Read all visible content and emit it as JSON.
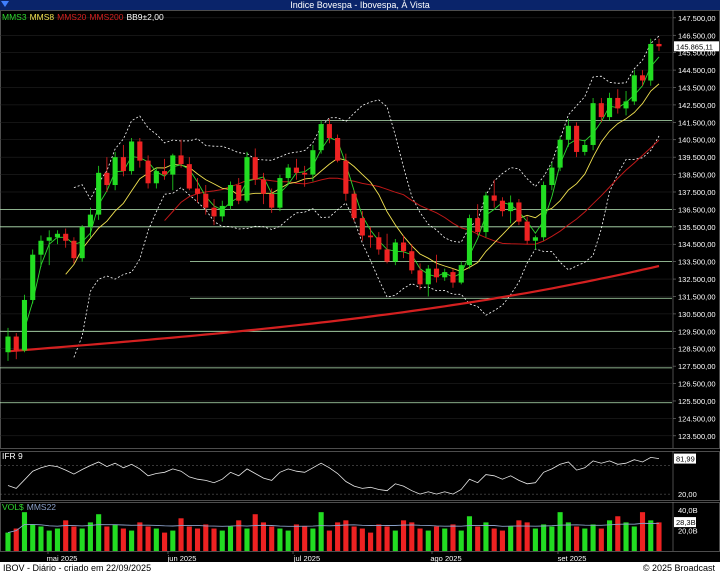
{
  "window": {
    "title": "Indice Bovespa - Ibovespa, À Vista"
  },
  "legend_main": [
    {
      "label": "MMS3",
      "color": "#2fd82f"
    },
    {
      "label": "MMS8",
      "color": "#f0e050"
    },
    {
      "label": "MMS20",
      "color": "#d42020"
    },
    {
      "label": "MMS200",
      "color": "#d42020"
    },
    {
      "label": "BB9±2,00",
      "color": "#ffffff"
    }
  ],
  "legend_ifr": [
    {
      "label": "IFR 9",
      "color": "#ffffff"
    }
  ],
  "legend_vol": [
    {
      "label": "VOL$",
      "color": "#2fd82f"
    },
    {
      "label": "MMS22",
      "color": "#8aa0c8"
    }
  ],
  "footer": {
    "left": "IBOV - Diário - criado em 22/09/2025",
    "right": "© 2025 Broadcast"
  },
  "colors": {
    "up": "#22dd22",
    "down": "#ee2222",
    "bb": "#ffffff",
    "grid": "#2a2a2a",
    "support": "#b8e8b8"
  },
  "chart_data": [
    {
      "type": "candlestick",
      "title": "Indice Bovespa - Ibovespa, À Vista",
      "x_labels": [
        "mai 2025",
        "jun 2025",
        "jul 2025",
        "ago 2025",
        "set 2025"
      ],
      "y_ticks": [
        123500,
        124500,
        125500,
        126500,
        127500,
        128500,
        129500,
        130500,
        131500,
        132500,
        133500,
        134500,
        135500,
        136500,
        137500,
        138500,
        139500,
        140500,
        141500,
        142500,
        143500,
        144500,
        145500,
        146500,
        147500
      ],
      "last_value_label": "145.865,11",
      "last_value": 145865.11,
      "horizontal_lines": [
        141600,
        136500,
        135500,
        133500,
        131400,
        129500,
        127400,
        125400
      ],
      "candles": [
        [
          128300,
          129700,
          127800,
          129200
        ],
        [
          129200,
          129400,
          127900,
          128400
        ],
        [
          128400,
          131600,
          128300,
          131300
        ],
        [
          131300,
          134200,
          131100,
          133900
        ],
        [
          133900,
          135000,
          133200,
          134700
        ],
        [
          134700,
          135300,
          133300,
          134900
        ],
        [
          134900,
          135300,
          134500,
          135100
        ],
        [
          135100,
          135400,
          134300,
          134700
        ],
        [
          134700,
          134900,
          133400,
          133700
        ],
        [
          133700,
          135600,
          133500,
          135500
        ],
        [
          135500,
          136600,
          134900,
          136200
        ],
        [
          136200,
          139000,
          135900,
          138600
        ],
        [
          138600,
          139500,
          137500,
          137900
        ],
        [
          137900,
          139800,
          137600,
          139500
        ],
        [
          139500,
          140200,
          138400,
          138700
        ],
        [
          138700,
          140600,
          138500,
          140400
        ],
        [
          140400,
          140600,
          138900,
          139300
        ],
        [
          139300,
          139600,
          137700,
          138000
        ],
        [
          138000,
          138900,
          137700,
          138700
        ],
        [
          138700,
          139400,
          138200,
          138500
        ],
        [
          138500,
          139700,
          137600,
          139600
        ],
        [
          139600,
          140500,
          138900,
          139100
        ],
        [
          139100,
          139500,
          137600,
          137700
        ],
        [
          137700,
          138300,
          136900,
          137400
        ],
        [
          137400,
          137900,
          136200,
          136600
        ],
        [
          136600,
          137100,
          135600,
          136100
        ],
        [
          136100,
          137000,
          135800,
          136700
        ],
        [
          136700,
          138100,
          136500,
          137900
        ],
        [
          137900,
          138300,
          136800,
          137000
        ],
        [
          137000,
          139800,
          136900,
          139500
        ],
        [
          139500,
          140000,
          137900,
          138200
        ],
        [
          138200,
          138600,
          136800,
          137400
        ],
        [
          137400,
          137700,
          136300,
          136600
        ],
        [
          136600,
          138500,
          136400,
          138300
        ],
        [
          138300,
          139100,
          137900,
          138900
        ],
        [
          138900,
          139400,
          138200,
          138600
        ],
        [
          138600,
          139000,
          137800,
          138500
        ],
        [
          138500,
          140200,
          138100,
          139900
        ],
        [
          139900,
          141600,
          139700,
          141400
        ],
        [
          141400,
          141700,
          140300,
          140600
        ],
        [
          140600,
          140800,
          139200,
          139300
        ],
        [
          139300,
          139700,
          137000,
          137400
        ],
        [
          137400,
          137600,
          135800,
          136000
        ],
        [
          136000,
          136400,
          134700,
          135000
        ],
        [
          135000,
          135500,
          134300,
          134900
        ],
        [
          134900,
          135200,
          133900,
          134200
        ],
        [
          134200,
          135100,
          133400,
          133500
        ],
        [
          133500,
          134800,
          133300,
          134600
        ],
        [
          134600,
          135000,
          133700,
          134100
        ],
        [
          134100,
          134500,
          132800,
          133000
        ],
        [
          133000,
          133400,
          131900,
          132200
        ],
        [
          132200,
          133300,
          131500,
          133100
        ],
        [
          133100,
          133900,
          132300,
          132600
        ],
        [
          132600,
          133100,
          132400,
          132900
        ],
        [
          132900,
          133100,
          132000,
          132300
        ],
        [
          132300,
          133500,
          132200,
          133300
        ],
        [
          133300,
          136200,
          133100,
          136000
        ],
        [
          136000,
          136800,
          135000,
          135200
        ],
        [
          135200,
          137500,
          134900,
          137300
        ],
        [
          137300,
          138200,
          136600,
          137000
        ],
        [
          137000,
          137200,
          136100,
          136400
        ],
        [
          136400,
          137300,
          135700,
          136900
        ],
        [
          136900,
          137100,
          135600,
          135800
        ],
        [
          135800,
          136100,
          134500,
          134700
        ],
        [
          134700,
          135000,
          134200,
          134900
        ],
        [
          134900,
          138100,
          134700,
          137900
        ],
        [
          137900,
          139200,
          137600,
          138900
        ],
        [
          138900,
          140700,
          138700,
          140500
        ],
        [
          140500,
          141700,
          140100,
          141300
        ],
        [
          141300,
          141500,
          139500,
          139800
        ],
        [
          139800,
          140500,
          139600,
          140200
        ],
        [
          140200,
          142900,
          139900,
          142600
        ],
        [
          142600,
          142900,
          141500,
          141800
        ],
        [
          141800,
          143200,
          141600,
          142900
        ],
        [
          142900,
          143400,
          142000,
          142300
        ],
        [
          142300,
          143300,
          141900,
          142700
        ],
        [
          142700,
          144500,
          142500,
          144200
        ],
        [
          144200,
          144500,
          143600,
          143900
        ],
        [
          143900,
          146300,
          143600,
          146000
        ],
        [
          146000,
          146300,
          145600,
          145865
        ]
      ]
    },
    {
      "type": "line",
      "title": "IFR 9",
      "y_ticks": [
        20
      ],
      "value_label": "81,99",
      "last_value": 81.99,
      "reference_lines": [
        20,
        70
      ],
      "values": [
        35,
        30,
        45,
        60,
        66,
        70,
        68,
        62,
        55,
        63,
        70,
        76,
        68,
        74,
        66,
        72,
        64,
        52,
        56,
        58,
        64,
        60,
        50,
        46,
        44,
        40,
        46,
        58,
        52,
        64,
        56,
        48,
        44,
        58,
        64,
        60,
        58,
        66,
        74,
        66,
        56,
        42,
        34,
        30,
        32,
        28,
        26,
        38,
        34,
        26,
        20,
        24,
        20,
        24,
        20,
        28,
        46,
        40,
        54,
        52,
        46,
        52,
        44,
        38,
        40,
        58,
        64,
        72,
        76,
        62,
        66,
        78,
        74,
        78,
        72,
        74,
        80,
        76,
        84,
        82
      ]
    },
    {
      "type": "bar",
      "title": "VOL$",
      "y_ticks": [
        20,
        40
      ],
      "y_tick_labels": [
        "20,0B",
        "40,0B"
      ],
      "value_label": "28,3B",
      "last_value": 28.3,
      "ma_label": "MMS22",
      "values": [
        18,
        22,
        38,
        26,
        24,
        20,
        22,
        30,
        24,
        22,
        28,
        36,
        24,
        26,
        22,
        20,
        28,
        24,
        22,
        18,
        20,
        32,
        24,
        22,
        26,
        22,
        20,
        24,
        30,
        22,
        36,
        28,
        24,
        22,
        20,
        26,
        24,
        22,
        38,
        20,
        28,
        30,
        24,
        22,
        18,
        26,
        24,
        20,
        30,
        28,
        22,
        20,
        24,
        22,
        26,
        20,
        34,
        24,
        28,
        22,
        20,
        24,
        30,
        28,
        22,
        26,
        24,
        38,
        28,
        24,
        22,
        26,
        22,
        30,
        34,
        28,
        24,
        38,
        30,
        28
      ]
    }
  ]
}
